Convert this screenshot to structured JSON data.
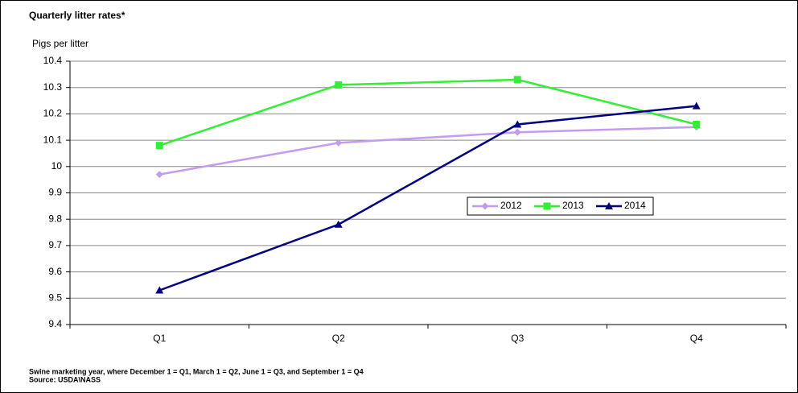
{
  "chart_data": {
    "type": "line",
    "title": "Quarterly litter rates*",
    "ylabel": "Pigs per litter",
    "categories": [
      "Q1",
      "Q2",
      "Q3",
      "Q4"
    ],
    "series": [
      {
        "name": "2012",
        "color": "#c39bf0",
        "marker": "diamond",
        "values": [
          9.97,
          10.09,
          10.13,
          10.15
        ]
      },
      {
        "name": "2013",
        "color": "#33ee33",
        "marker": "square",
        "values": [
          10.08,
          10.31,
          10.33,
          10.16
        ]
      },
      {
        "name": "2014",
        "color": "#000080",
        "marker": "triangle",
        "values": [
          9.53,
          9.78,
          10.16,
          10.23
        ]
      }
    ],
    "ylim": [
      9.4,
      10.4
    ],
    "yticks": [
      9.4,
      9.5,
      9.6,
      9.7,
      9.8,
      9.9,
      10,
      10.1,
      10.2,
      10.3,
      10.4
    ],
    "grid": true,
    "legend": "center-right",
    "notes": [
      "Swine marketing year, where December 1 = Q1, March 1 = Q2, June 1 = Q3, and September 1 = Q4",
      "Source: USDA\\NASS"
    ]
  }
}
